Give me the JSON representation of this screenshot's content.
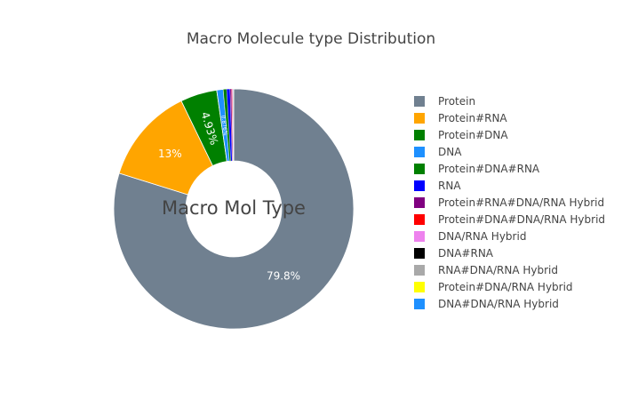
{
  "chart_data": {
    "type": "pie",
    "hole": true,
    "title": "Macro Molecule type Distribution",
    "center_text": "Macro Mol Type",
    "legend_position": "right",
    "slices": [
      {
        "label": "Protein",
        "value": 79.8,
        "text": "79.8%",
        "color": "#708090"
      },
      {
        "label": "Protein#RNA",
        "value": 13.0,
        "text": "13%",
        "color": "#FFA500"
      },
      {
        "label": "Protein#DNA",
        "value": 4.93,
        "text": "4.93%",
        "color": "#008000"
      },
      {
        "label": "DNA",
        "value": 0.876,
        "text": "0.876%",
        "color": "#1E90FF"
      },
      {
        "label": "Protein#DNA#RNA",
        "value": 0.45,
        "text": "",
        "color": "#008000"
      },
      {
        "label": "RNA",
        "value": 0.45,
        "text": "",
        "color": "#0000FF"
      },
      {
        "label": "Protein#RNA#DNA/RNA Hybrid",
        "value": 0.2,
        "text": "",
        "color": "#800080"
      },
      {
        "label": "Protein#DNA#DNA/RNA Hybrid",
        "value": 0.1,
        "text": "",
        "color": "#FF0000"
      },
      {
        "label": "DNA/RNA Hybrid",
        "value": 0.1,
        "text": "",
        "color": "#EE82EE"
      },
      {
        "label": "DNA#RNA",
        "value": 0.05,
        "text": "",
        "color": "#000000"
      },
      {
        "label": "RNA#DNA/RNA Hybrid",
        "value": 0.02,
        "text": "",
        "color": "#A9A9A9"
      },
      {
        "label": "Protein#DNA/RNA Hybrid",
        "value": 0.01,
        "text": "",
        "color": "#FFFF00"
      },
      {
        "label": "DNA#DNA/RNA Hybrid",
        "value": 0.01,
        "text": "",
        "color": "#1E90FF"
      }
    ]
  }
}
